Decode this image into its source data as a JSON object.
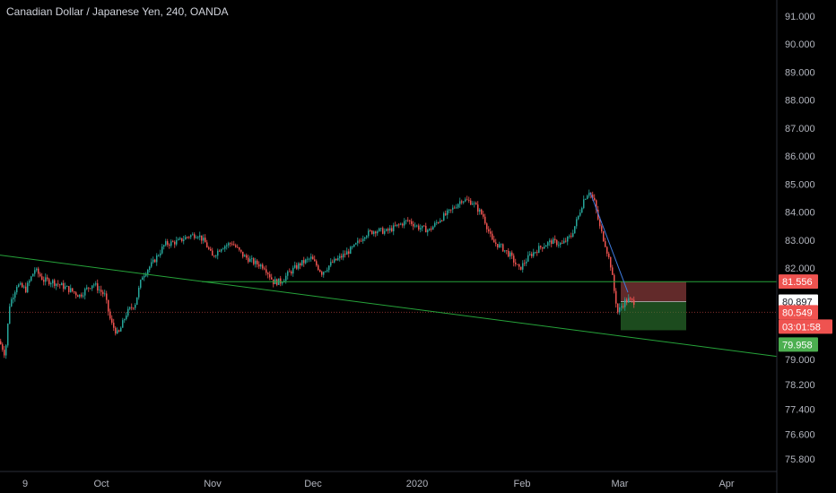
{
  "header": {
    "title": "Canadian Dollar / Japanese Yen, 240, OANDA"
  },
  "chart_data": {
    "type": "candlestick",
    "symbol": "CADJPY",
    "interval": "240",
    "source": "OANDA",
    "y_ticks": [
      91.0,
      90.0,
      89.0,
      88.0,
      87.0,
      86.0,
      85.0,
      84.0,
      83.0,
      82.0,
      79.0,
      78.2,
      77.4,
      76.6,
      75.8
    ],
    "y_tick_labels": [
      "91.000",
      "90.000",
      "89.000",
      "88.000",
      "87.000",
      "86.000",
      "85.000",
      "84.000",
      "83.000",
      "82.000",
      "79.000",
      "78.200",
      "77.400",
      "76.600",
      "75.800"
    ],
    "x_tick_labels": [
      "9",
      "Oct",
      "Nov",
      "Dec",
      "2020",
      "Feb",
      "Mar",
      "Apr"
    ],
    "price_path": [
      [
        0,
        79.6
      ],
      [
        3,
        79.45
      ],
      [
        7,
        79.15
      ],
      [
        12,
        80.8
      ],
      [
        20,
        81.45
      ],
      [
        30,
        81.3
      ],
      [
        40,
        81.95
      ],
      [
        50,
        81.6
      ],
      [
        60,
        81.55
      ],
      [
        75,
        81.35
      ],
      [
        90,
        81.1
      ],
      [
        105,
        81.5
      ],
      [
        118,
        81.1
      ],
      [
        125,
        80.2
      ],
      [
        133,
        79.8
      ],
      [
        142,
        80.5
      ],
      [
        152,
        80.85
      ],
      [
        160,
        81.75
      ],
      [
        172,
        82.2
      ],
      [
        185,
        82.85
      ],
      [
        200,
        82.95
      ],
      [
        212,
        83.15
      ],
      [
        222,
        83.2
      ],
      [
        230,
        82.9
      ],
      [
        238,
        82.4
      ],
      [
        248,
        82.75
      ],
      [
        260,
        82.9
      ],
      [
        272,
        82.45
      ],
      [
        284,
        82.2
      ],
      [
        296,
        82.05
      ],
      [
        306,
        81.55
      ],
      [
        314,
        81.55
      ],
      [
        324,
        81.85
      ],
      [
        336,
        82.15
      ],
      [
        348,
        82.35
      ],
      [
        360,
        81.85
      ],
      [
        372,
        82.2
      ],
      [
        384,
        82.45
      ],
      [
        396,
        82.75
      ],
      [
        408,
        83.2
      ],
      [
        420,
        83.35
      ],
      [
        432,
        83.3
      ],
      [
        444,
        83.5
      ],
      [
        456,
        83.7
      ],
      [
        468,
        83.45
      ],
      [
        480,
        83.35
      ],
      [
        492,
        83.75
      ],
      [
        504,
        84.05
      ],
      [
        516,
        84.45
      ],
      [
        528,
        84.35
      ],
      [
        540,
        83.85
      ],
      [
        550,
        82.95
      ],
      [
        560,
        82.75
      ],
      [
        570,
        82.45
      ],
      [
        580,
        81.95
      ],
      [
        592,
        82.45
      ],
      [
        604,
        82.75
      ],
      [
        616,
        82.95
      ],
      [
        628,
        82.85
      ],
      [
        638,
        83.15
      ],
      [
        646,
        83.85
      ],
      [
        652,
        84.45
      ],
      [
        658,
        84.75
      ],
      [
        664,
        84.35
      ],
      [
        670,
        83.45
      ],
      [
        676,
        82.85
      ],
      [
        682,
        82.1
      ],
      [
        686,
        81.25
      ],
      [
        690,
        80.55
      ],
      [
        694,
        80.75
      ],
      [
        698,
        80.9
      ],
      [
        702,
        80.95
      ],
      [
        706,
        80.9
      ]
    ],
    "trendlines": [
      {
        "from": [
          0,
          82.46
        ],
        "to": [
          866,
          79.1
        ],
        "color": "#26a33a"
      },
      {
        "from": [
          225,
          81.55
        ],
        "to": [
          866,
          81.55
        ],
        "color": "#26a33a"
      },
      {
        "from": [
          658,
          84.7
        ],
        "to": [
          700,
          81.2
        ],
        "color": "#3e7ce0"
      }
    ],
    "position_tool": {
      "entry": 80.897,
      "stop": 81.556,
      "target": 79.958,
      "x_start": 692,
      "x_end": 765,
      "loss_color": "#b24d4d",
      "profit_color": "#2e7d32"
    },
    "price_labels": [
      {
        "id": "stop-level-label",
        "text": "81.556",
        "value": 81.556,
        "bg": "#ef5350",
        "fg": "#ffffff"
      },
      {
        "id": "entry-level-label",
        "text": "80.897",
        "value": 80.897,
        "bg": "#ffffff",
        "fg": "#131722"
      },
      {
        "id": "last-price-label",
        "text": "80.549",
        "value": 80.549,
        "bg": "#ef5350",
        "fg": "#ffffff"
      },
      {
        "id": "countdown-label",
        "text": "03:01:58",
        "value": 80.549,
        "bg": "#ef5350",
        "fg": "#ffffff"
      },
      {
        "id": "target-level-label",
        "text": "79.958",
        "value": 79.958,
        "bg": "#4caf50",
        "fg": "#ffffff"
      }
    ],
    "last_price": 80.549,
    "colors": {
      "background": "#000000",
      "up": "#26a69a",
      "down": "#ef5350",
      "axis_text": "#b2b5be",
      "grid": "none"
    },
    "grid": false,
    "legend": "none",
    "y_scale": "piecewise-linear"
  }
}
